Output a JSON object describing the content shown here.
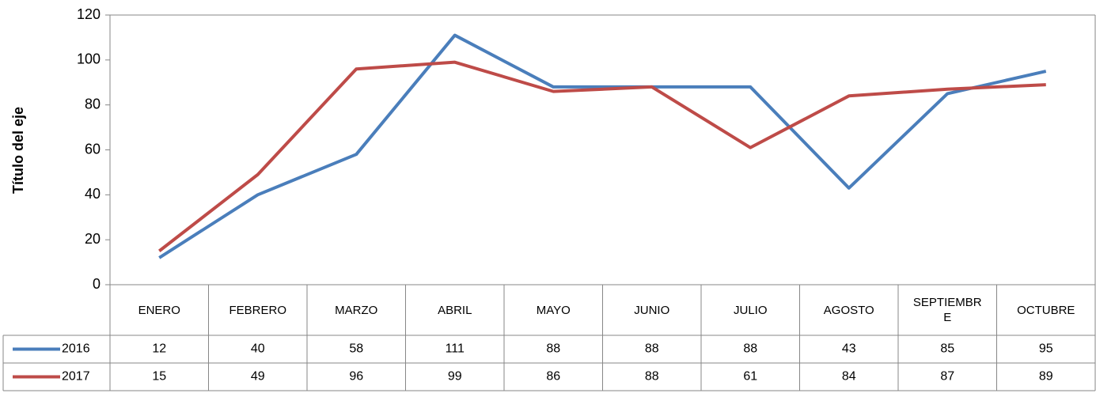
{
  "chart_data": {
    "type": "line",
    "y_label": "Título del eje",
    "categories": [
      "ENERO",
      "FEBRERO",
      "MARZO",
      "ABRIL",
      "MAYO",
      "JUNIO",
      "JULIO",
      "AGOSTO",
      "SEPTIEMBRE",
      "OCTUBRE"
    ],
    "series": [
      {
        "name": "2016",
        "color": "#4a7ebb",
        "values": [
          12,
          40,
          58,
          111,
          88,
          88,
          88,
          43,
          85,
          95
        ]
      },
      {
        "name": "2017",
        "color": "#be4b48",
        "values": [
          15,
          49,
          96,
          99,
          86,
          88,
          61,
          84,
          87,
          89
        ]
      }
    ],
    "ylim": [
      0,
      120
    ],
    "yticks": [
      0,
      20,
      40,
      60,
      80,
      100,
      120
    ],
    "grid": false
  }
}
